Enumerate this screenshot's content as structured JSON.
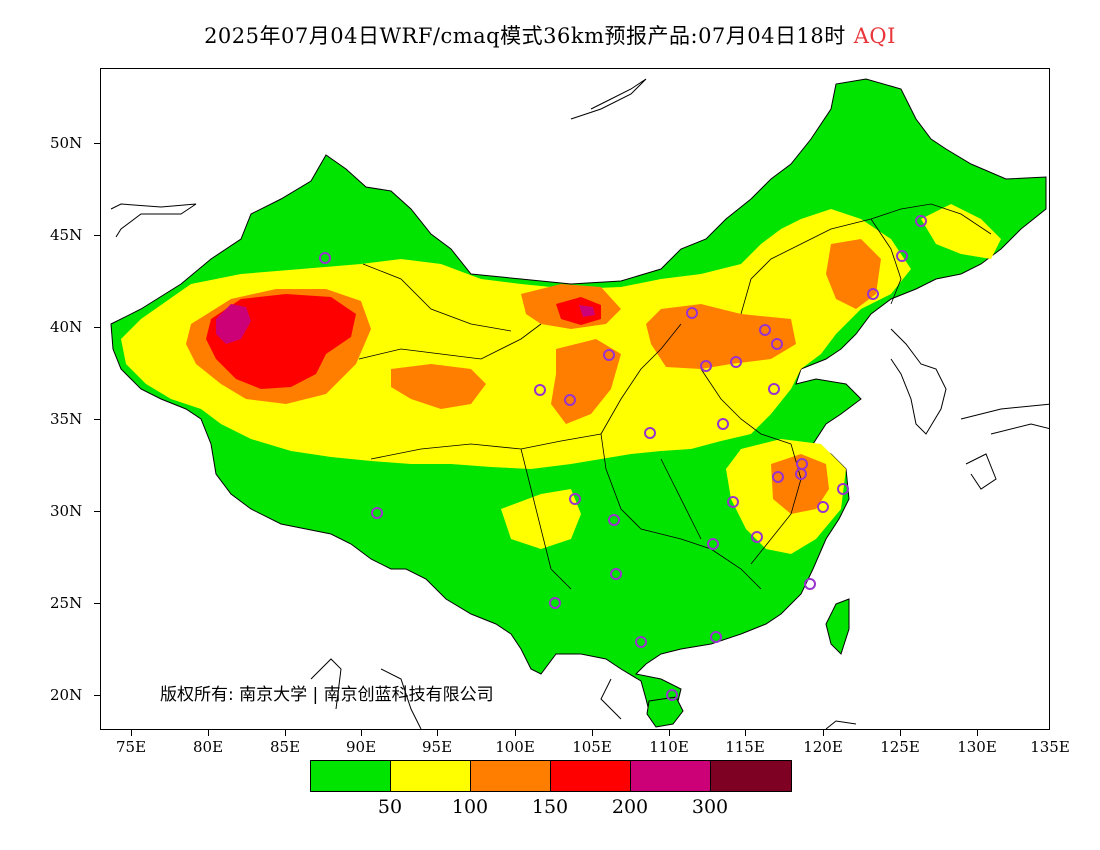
{
  "header": {
    "title": "2025年07月04日WRF/cmaq模式36km预报产品:07月04日18时",
    "variable": "AQI"
  },
  "map": {
    "lat_labels": [
      "50N",
      "45N",
      "40N",
      "35N",
      "30N",
      "25N",
      "20N"
    ],
    "lon_labels": [
      "75E",
      "80E",
      "85E",
      "90E",
      "95E",
      "100E",
      "105E",
      "110E",
      "115E",
      "120E",
      "125E",
      "130E",
      "135E"
    ],
    "copyright": "版权所有: 南京大学 | 南京创蓝科技有限公司",
    "colors": {
      "land_background": "#00e400",
      "ocean": "#ffffff",
      "boundary": "#000000",
      "station_marker": "#9933cc"
    }
  },
  "legend": {
    "colors": [
      "#00e400",
      "#ffff00",
      "#ff7e00",
      "#ff0000",
      "#cc0077",
      "#7e0023"
    ],
    "labels": [
      "50",
      "100",
      "150",
      "200",
      "300"
    ]
  }
}
